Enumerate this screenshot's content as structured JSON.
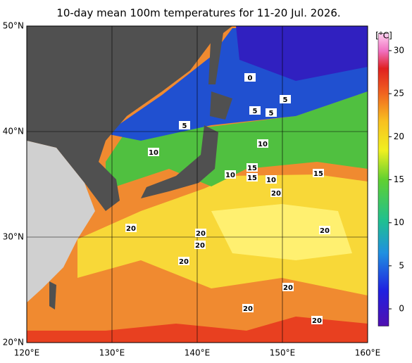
{
  "title": "10-day mean 100m temperatures for 11-20 Jul. 2026.",
  "map": {
    "xlim": [
      120,
      160
    ],
    "ylim": [
      20,
      50
    ],
    "xticks": [
      {
        "value": 120,
        "label": "120°E"
      },
      {
        "value": 130,
        "label": "130°E"
      },
      {
        "value": 140,
        "label": "140°E"
      },
      {
        "value": 150,
        "label": "150°E"
      },
      {
        "value": 160,
        "label": "160°E"
      }
    ],
    "yticks": [
      {
        "value": 20,
        "label": "20°N"
      },
      {
        "value": 30,
        "label": "30°N"
      },
      {
        "value": 40,
        "label": "40°N"
      },
      {
        "value": 50,
        "label": "50°N"
      }
    ],
    "contour_labels": [
      "0",
      "5",
      "5",
      "5",
      "5",
      "10",
      "10",
      "15",
      "15",
      "10",
      "10",
      "15",
      "20",
      "20",
      "20",
      "20",
      "20",
      "20",
      "20",
      "20",
      "20"
    ]
  },
  "colorbar": {
    "label": "[°C]",
    "clim": [
      -2,
      32
    ],
    "ticks": [
      0,
      5,
      10,
      15,
      20,
      25,
      30
    ]
  }
}
